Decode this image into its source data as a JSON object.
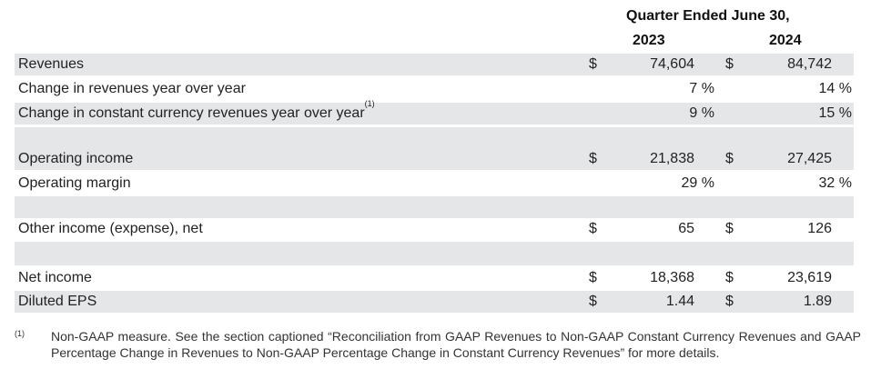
{
  "header": {
    "period": "Quarter Ended June 30,",
    "year1": "2023",
    "year2": "2024"
  },
  "rows": {
    "revenues": {
      "label": "Revenues",
      "cur1": "$",
      "v1": "74,604",
      "cur2": "$",
      "v2": "84,742"
    },
    "change_rev": {
      "label": "Change in revenues year over year",
      "v1": "7 %",
      "v2": "14 %"
    },
    "change_cc": {
      "label": "Change in constant currency revenues year over year",
      "sup": "(1)",
      "v1": "9 %",
      "v2": "15 %"
    },
    "op_income": {
      "label": "Operating income",
      "cur1": "$",
      "v1": "21,838",
      "cur2": "$",
      "v2": "27,425"
    },
    "op_margin": {
      "label": "Operating margin",
      "v1": "29 %",
      "v2": "32 %"
    },
    "other_income": {
      "label": "Other income (expense), net",
      "cur1": "$",
      "v1": "65",
      "cur2": "$",
      "v2": "126"
    },
    "net_income": {
      "label": "Net income",
      "cur1": "$",
      "v1": "18,368",
      "cur2": "$",
      "v2": "23,619"
    },
    "eps": {
      "label": "Diluted EPS",
      "cur1": "$",
      "v1": "1.44",
      "cur2": "$",
      "v2": "1.89"
    }
  },
  "footnote": {
    "mark": "(1)",
    "text": "Non-GAAP measure. See the section captioned “Reconciliation from GAAP Revenues to Non-GAAP Constant Currency Revenues and GAAP Percentage Change in Revenues to Non-GAAP Percentage Change in Constant Currency Revenues” for more details."
  }
}
